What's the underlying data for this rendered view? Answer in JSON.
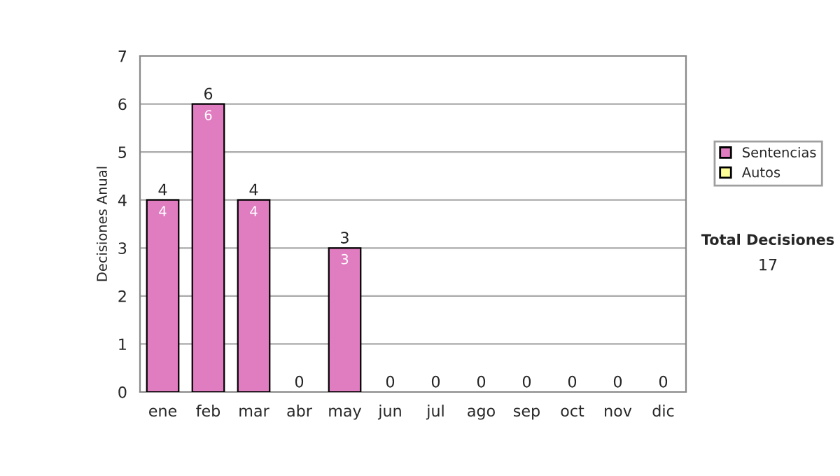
{
  "chart_data": {
    "type": "bar",
    "ylabel": "Decisiones Anual",
    "categories": [
      "ene",
      "feb",
      "mar",
      "abr",
      "may",
      "jun",
      "jul",
      "ago",
      "sep",
      "oct",
      "nov",
      "dic"
    ],
    "series": [
      {
        "name": "Sentencias",
        "color": "#e07cc0",
        "values": [
          4,
          6,
          4,
          0,
          3,
          0,
          0,
          0,
          0,
          0,
          0,
          0
        ],
        "value_labels": [
          "4",
          "6",
          "4",
          null,
          "3",
          null,
          null,
          null,
          null,
          null,
          null,
          null
        ]
      },
      {
        "name": "Autos",
        "color": "#ffff99",
        "values": [
          0,
          0,
          0,
          0,
          0,
          0,
          0,
          0,
          0,
          0,
          0,
          0
        ]
      }
    ],
    "stacked": true,
    "totals": [
      "4",
      "6",
      "4",
      "0",
      "3",
      "0",
      "0",
      "0",
      "0",
      "0",
      "0",
      "0"
    ],
    "ylim": [
      0,
      7
    ],
    "yticks": [
      0,
      1,
      2,
      3,
      4,
      5,
      6,
      7
    ],
    "grid": "y",
    "legend": "right",
    "annotations": [
      "Total Decisiones",
      "17"
    ]
  }
}
